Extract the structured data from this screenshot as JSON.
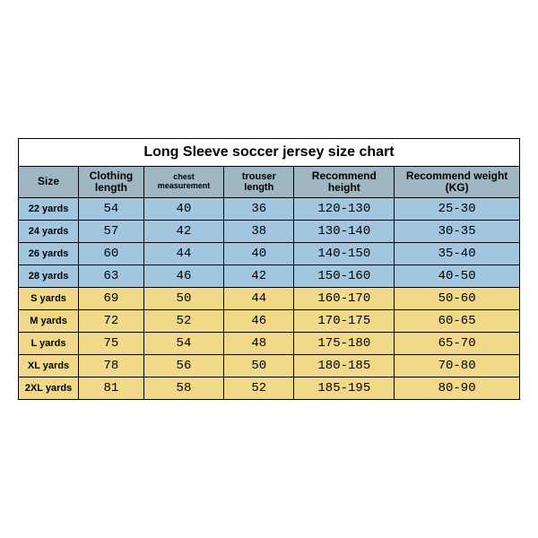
{
  "title": "Long Sleeve soccer jersey size chart",
  "title_fontsize": 16,
  "background_color": "#ffffff",
  "border_color": "#000000",
  "columns": [
    {
      "key": "size",
      "label": "Size",
      "fontsize": 12,
      "width_pct": 12
    },
    {
      "key": "cl",
      "label": "Clothing length",
      "fontsize": 12,
      "width_pct": 13
    },
    {
      "key": "chest",
      "label": "chest measurement",
      "fontsize": 9,
      "width_pct": 16
    },
    {
      "key": "trou",
      "label": "trouser length",
      "fontsize": 11,
      "width_pct": 14
    },
    {
      "key": "rh",
      "label": "Recommend height",
      "fontsize": 12,
      "width_pct": 20
    },
    {
      "key": "rw",
      "label": "Recommend weight (KG)",
      "fontsize": 12,
      "width_pct": 25
    }
  ],
  "header_bg": "#9fb7c3",
  "header_fontsize": 12,
  "row_groups": {
    "blue": {
      "bg": "#a2c6e0"
    },
    "yellow": {
      "bg": "#f2d98a"
    }
  },
  "body_fontsize": 14,
  "size_col_fontsize": 11,
  "rows": [
    {
      "group": "blue",
      "size": "22 yards",
      "cl": "54",
      "chest": "40",
      "trou": "36",
      "rh": "120-130",
      "rw": "25-30"
    },
    {
      "group": "blue",
      "size": "24 yards",
      "cl": "57",
      "chest": "42",
      "trou": "38",
      "rh": "130-140",
      "rw": "30-35"
    },
    {
      "group": "blue",
      "size": "26 yards",
      "cl": "60",
      "chest": "44",
      "trou": "40",
      "rh": "140-150",
      "rw": "35-40"
    },
    {
      "group": "blue",
      "size": "28 yards",
      "cl": "63",
      "chest": "46",
      "trou": "42",
      "rh": "150-160",
      "rw": "40-50"
    },
    {
      "group": "yellow",
      "size": "S yards",
      "cl": "69",
      "chest": "50",
      "trou": "44",
      "rh": "160-170",
      "rw": "50-60"
    },
    {
      "group": "yellow",
      "size": "M yards",
      "cl": "72",
      "chest": "52",
      "trou": "46",
      "rh": "170-175",
      "rw": "60-65"
    },
    {
      "group": "yellow",
      "size": "L yards",
      "cl": "75",
      "chest": "54",
      "trou": "48",
      "rh": "175-180",
      "rw": "65-70"
    },
    {
      "group": "yellow",
      "size": "XL yards",
      "cl": "78",
      "chest": "56",
      "trou": "50",
      "rh": "180-185",
      "rw": "70-80"
    },
    {
      "group": "yellow",
      "size": "2XL yards",
      "cl": "81",
      "chest": "58",
      "trou": "52",
      "rh": "185-195",
      "rw": "80-90"
    }
  ]
}
